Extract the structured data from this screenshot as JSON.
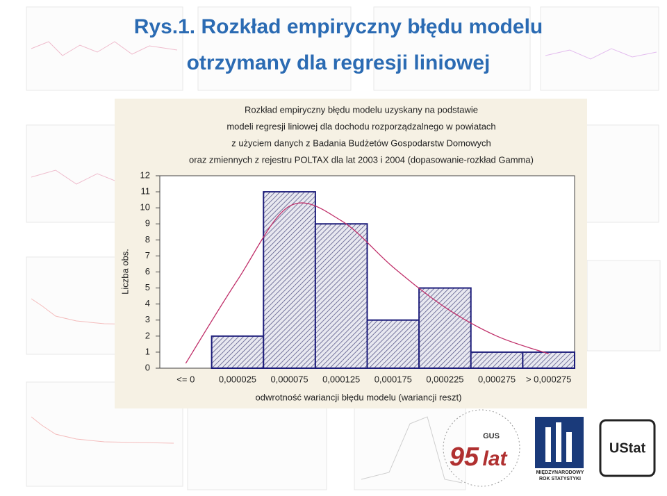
{
  "slide": {
    "title": [
      "Rys.1. Rozkład empiryczny błędu modelu",
      "otrzymany dla regresji liniowej"
    ]
  },
  "chart_data": {
    "type": "bar",
    "title": [
      "Rozkład empiryczny błędu modelu uzyskany na podstawie",
      "modeli regresji liniowej dla dochodu rozporządzalnego w powiatach",
      "z użyciem danych z Badania Budżetów Gospodarstw Domowych",
      "oraz zmiennych z rejestru POLTAX dla lat 2003 i 2004 (dopasowanie-rozkład Gamma)"
    ],
    "x_label": "odwrotność wariancji błędu modelu (wariancji reszt)",
    "y_label": "Liczba obs.",
    "categories": [
      "<= 0",
      "0,000025",
      "0,000075",
      "0,000125",
      "0,000175",
      "0,000225",
      "0,000275",
      "> 0,000275"
    ],
    "values": [
      0,
      2,
      11,
      9,
      3,
      5,
      1,
      1
    ],
    "color": "#1c1c7a",
    "fit_curve": {
      "color": "#c0306a",
      "values": [
        0.3,
        5.5,
        10.1,
        9.2,
        6.3,
        3.8,
        2,
        0.9
      ]
    },
    "ylim": [
      0,
      12
    ],
    "yticks": [
      0,
      1,
      2,
      3,
      4,
      5,
      6,
      7,
      8,
      9,
      10,
      11,
      12
    ]
  },
  "logos": {
    "gus_number": "95",
    "gus_lat": "lat",
    "gus_abbr": "GUS",
    "year_title": "MIĘDZYNARODOWY ROK STATYSTYKI",
    "ustat": "UStat"
  }
}
